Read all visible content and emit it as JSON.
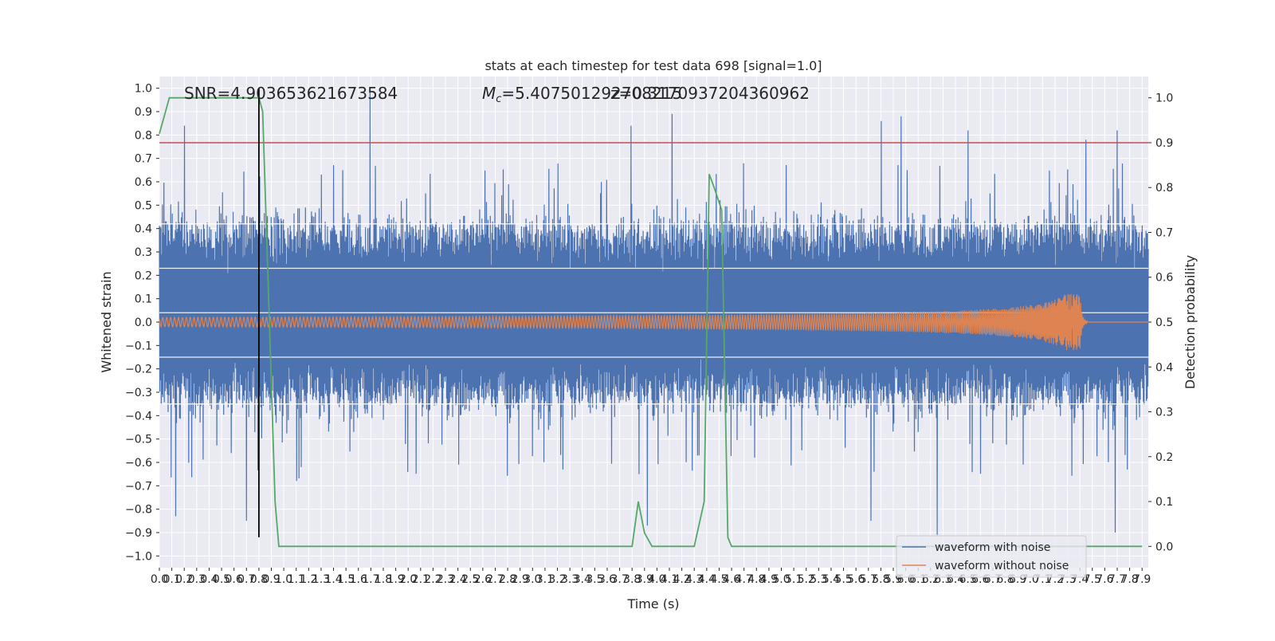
{
  "chart_data": {
    "type": "line",
    "title": "stats at each timestep for test data 698 [signal=1.0]",
    "xlabel": "Time (s)",
    "ylabel": "Whitened strain",
    "y2label": "Detection probability",
    "xlim": [
      0.0,
      7.95
    ],
    "ylim": [
      -1.05,
      1.05
    ],
    "y2lim": [
      -0.0475,
      1.0475
    ],
    "grid": true,
    "x_ticks": [
      0.0,
      0.1,
      0.2,
      0.3,
      0.4,
      0.5,
      0.6,
      0.7,
      0.8,
      0.9,
      1.0,
      1.1,
      1.2,
      1.3,
      1.4,
      1.5,
      1.6,
      1.7,
      1.8,
      1.9,
      2.0,
      2.1,
      2.2,
      2.3,
      2.4,
      2.5,
      2.6,
      2.7,
      2.8,
      2.9,
      3.0,
      3.1,
      3.2,
      3.3,
      3.4,
      3.5,
      3.6,
      3.7,
      3.8,
      3.9,
      4.0,
      4.1,
      4.2,
      4.3,
      4.4,
      4.5,
      4.6,
      4.7,
      4.8,
      4.9,
      5.0,
      5.1,
      5.2,
      5.3,
      5.4,
      5.5,
      5.6,
      5.7,
      5.8,
      5.9,
      6.0,
      6.1,
      6.2,
      6.3,
      6.4,
      6.5,
      6.6,
      6.7,
      6.8,
      6.9,
      7.0,
      7.1,
      7.2,
      7.3,
      7.4,
      7.5,
      7.6,
      7.7,
      7.8,
      7.9
    ],
    "y_ticks": [
      -1.0,
      -0.9,
      -0.8,
      -0.7,
      -0.6,
      -0.5,
      -0.4,
      -0.3,
      -0.2,
      -0.1,
      0.0,
      0.1,
      0.2,
      0.3,
      0.4,
      0.5,
      0.6,
      0.7,
      0.8,
      0.9,
      1.0
    ],
    "y2_ticks": [
      0.0,
      0.1,
      0.2,
      0.3,
      0.4,
      0.5,
      0.6,
      0.7,
      0.8,
      0.9,
      1.0
    ],
    "annotations": {
      "snr": "SNR=4.903653621673584",
      "mc_symbol": "M",
      "mc_sub": "c",
      "mc_value": "=5.407501292708215",
      "overlap": "z=0.3170937204360962"
    },
    "legend": {
      "placement": "lower-right",
      "entries": [
        {
          "label": "waveform with noise",
          "color": "#4c72b0"
        },
        {
          "label": "waveform without noise",
          "color": "#dd8452"
        }
      ]
    },
    "series": [
      {
        "name": "waveform with noise",
        "color": "#4c72b0",
        "kind": "noise",
        "typical_envelope": [
          -0.35,
          0.42
        ],
        "peaks": [
          {
            "t": 0.2,
            "v": 0.84
          },
          {
            "t": 1.69,
            "v": 1.0
          },
          {
            "t": 3.79,
            "v": 0.84
          },
          {
            "t": 4.12,
            "v": 0.89
          },
          {
            "t": 5.96,
            "v": 0.88
          },
          {
            "t": 5.8,
            "v": 0.86
          },
          {
            "t": 7.7,
            "v": 0.82
          },
          {
            "t": 6.5,
            "v": 0.82
          },
          {
            "t": 7.45,
            "v": 0.78
          },
          {
            "t": 0.13,
            "v": -0.83
          },
          {
            "t": 0.7,
            "v": -0.85
          },
          {
            "t": 6.25,
            "v": -0.91
          },
          {
            "t": 7.68,
            "v": -0.9
          },
          {
            "t": 3.92,
            "v": -0.87
          },
          {
            "t": 5.72,
            "v": -0.85
          }
        ]
      },
      {
        "name": "waveform without noise",
        "color": "#dd8452",
        "kind": "chirp",
        "start_amplitude": 0.02,
        "peak_amplitude": 0.12,
        "merger_time": 7.4
      },
      {
        "name": "detection probability",
        "color": "#55a868",
        "axis": "right",
        "x": [
          0.0,
          0.08,
          0.15,
          0.8,
          0.83,
          0.93,
          0.96,
          1.0,
          3.75,
          3.8,
          3.85,
          3.9,
          3.96,
          4.0,
          4.25,
          4.3,
          4.38,
          4.42,
          4.46,
          4.52,
          4.57,
          4.6,
          4.65,
          7.9
        ],
        "y": [
          0.92,
          1.0,
          1.0,
          1.0,
          0.97,
          0.1,
          0.0,
          0.0,
          0.0,
          0.0,
          0.1,
          0.03,
          0.0,
          0.0,
          0.0,
          0.0,
          0.1,
          0.83,
          0.8,
          0.75,
          0.02,
          0.0,
          0.0,
          0.0
        ]
      }
    ],
    "threshold": {
      "value": 0.9,
      "axis": "right",
      "color": "#c44e52"
    },
    "marker": {
      "t": 0.8,
      "color": "#000000",
      "y_range": [
        -0.92,
        1.0
      ]
    }
  }
}
